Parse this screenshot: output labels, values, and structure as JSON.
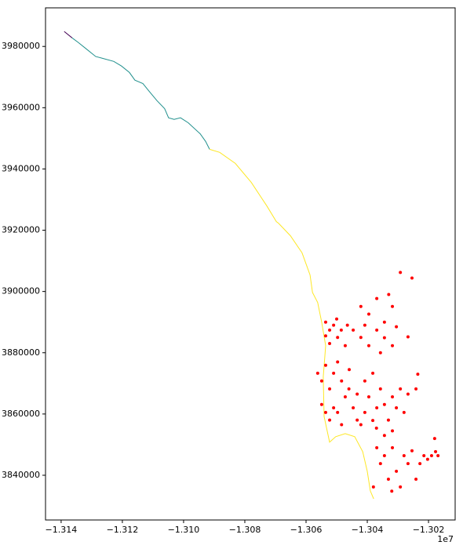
{
  "chart_data": {
    "type": "scatter",
    "x_offset_label": "1e7",
    "xlim": [
      -13145100,
      -13011300
    ],
    "ylim": [
      3825400,
      3992600
    ],
    "xticks": [
      {
        "value": -13140000,
        "label": "−1.314"
      },
      {
        "value": -13120000,
        "label": "−1.312"
      },
      {
        "value": -13100000,
        "label": "−1.310"
      },
      {
        "value": -13080000,
        "label": "−1.308"
      },
      {
        "value": -13060000,
        "label": "−1.306"
      },
      {
        "value": -13040000,
        "label": "−1.304"
      },
      {
        "value": -13020000,
        "label": "−1.302"
      }
    ],
    "yticks": [
      3840000,
      3860000,
      3880000,
      3900000,
      3920000,
      3940000,
      3960000,
      3980000
    ],
    "grid": false,
    "series": [
      {
        "type": "line",
        "color": "#440154",
        "x": [
          -13139000,
          -13136400
        ],
        "values": [
          3984900,
          3982800
        ]
      },
      {
        "type": "line",
        "color": "#21908d",
        "x": [
          -13136400,
          -13134400,
          -13131800,
          -13128700,
          -13126700,
          -13122800,
          -13120300,
          -13117700,
          -13115900,
          -13113300,
          -13111300,
          -13108700,
          -13106200,
          -13104900,
          -13103100,
          -13101000,
          -13098500,
          -13094600,
          -13092800,
          -13091500
        ],
        "values": [
          3982800,
          3981300,
          3979200,
          3976700,
          3976200,
          3975100,
          3973600,
          3971500,
          3969000,
          3967900,
          3965400,
          3962300,
          3959700,
          3956700,
          3956200,
          3956700,
          3955100,
          3951500,
          3949000,
          3946400
        ]
      },
      {
        "type": "line",
        "color": "#fde725",
        "x": [
          -13091500,
          -13088200,
          -13083100,
          -13077900,
          -13072800,
          -13069700,
          -13069000,
          -13065100,
          -13061300,
          -13058700,
          -13057900,
          -13056200,
          -13054900,
          -13053600,
          -13054400,
          -13054100,
          -13052300,
          -13050300,
          -13047200,
          -13044100,
          -13041500,
          -13040000,
          -13039000,
          -13037900
        ],
        "values": [
          3946400,
          3945400,
          3941800,
          3935600,
          3927900,
          3922800,
          3922300,
          3918200,
          3912600,
          3905400,
          3899700,
          3896400,
          3890000,
          3882300,
          3872100,
          3859200,
          3850800,
          3852600,
          3853600,
          3852600,
          3847700,
          3841300,
          3834900,
          3832300
        ]
      },
      {
        "type": "scatter",
        "color": "#ff0000",
        "x": [
          -13053600,
          -13052300,
          -13051000,
          -13049700,
          -13048500,
          -13047200,
          -13052300,
          -13050000,
          -13046500,
          -13053600,
          -13042100,
          -13039500,
          -13036900,
          -13034400,
          -13031800,
          -13042100,
          -13039500,
          -13036900,
          -13034400,
          -13031800,
          -13044600,
          -13033000,
          -13040800,
          -13035700,
          -13030500,
          -13029200,
          -13025400,
          -13026700,
          -13023500,
          -13024100,
          -13056200,
          -13054900,
          -13053600,
          -13052300,
          -13051000,
          -13049700,
          -13048400,
          -13047200,
          -13054900,
          -13053600,
          -13052300,
          -13051000,
          -13049700,
          -13046000,
          -13044600,
          -13043300,
          -13042100,
          -13040800,
          -13039500,
          -13038200,
          -13036900,
          -13035700,
          -13034400,
          -13033100,
          -13031800,
          -13030500,
          -13029200,
          -13028000,
          -13026700,
          -13040800,
          -13038200,
          -13043300,
          -13045900,
          -13048400,
          -13037000,
          -13034400,
          -13031800,
          -13036900,
          -13035700,
          -13034400,
          -13033100,
          -13031800,
          -13030500,
          -13029200,
          -13028000,
          -13026700,
          -13025400,
          -13024100,
          -13022800,
          -13021500,
          -13020300,
          -13019000,
          -13017700,
          -13016900,
          -13018000,
          -13032000,
          -13038000
        ],
        "values": [
          3890000,
          3887400,
          3889000,
          3885000,
          3887400,
          3882300,
          3883000,
          3891000,
          3889000,
          3885500,
          3895100,
          3892600,
          3897700,
          3890000,
          3895100,
          3885000,
          3882300,
          3887400,
          3884900,
          3882300,
          3887400,
          3899000,
          3889000,
          3880000,
          3888500,
          3906200,
          3904400,
          3885200,
          3873000,
          3868200,
          3873300,
          3870800,
          3875900,
          3868200,
          3873300,
          3877000,
          3870800,
          3865600,
          3863100,
          3860500,
          3858000,
          3862000,
          3860500,
          3868200,
          3862000,
          3858000,
          3856500,
          3860500,
          3865600,
          3857900,
          3862000,
          3868200,
          3863100,
          3858000,
          3865600,
          3862000,
          3868200,
          3860500,
          3866500,
          3870800,
          3873300,
          3866500,
          3874500,
          3856500,
          3855400,
          3853000,
          3854500,
          3849000,
          3843800,
          3846400,
          3838700,
          3849000,
          3841300,
          3836200,
          3846400,
          3843800,
          3848000,
          3838700,
          3843800,
          3846400,
          3845200,
          3846400,
          3847700,
          3846400,
          3852000,
          3834800,
          3836200
        ]
      }
    ]
  }
}
